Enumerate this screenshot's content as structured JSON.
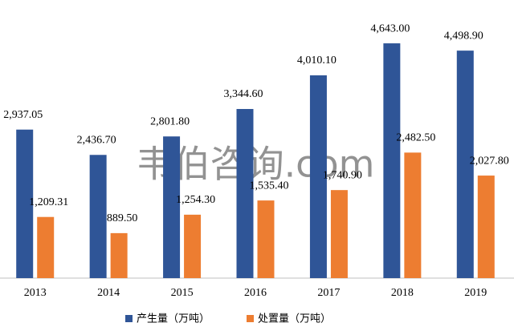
{
  "chart_data": {
    "type": "bar",
    "watermark": "韦伯咨询.com",
    "categories": [
      "2013",
      "2014",
      "2015",
      "2016",
      "2017",
      "2018",
      "2019"
    ],
    "series": [
      {
        "name": "产生量（万吨）",
        "color": "#2f5597",
        "values": [
          2937.05,
          2436.7,
          2801.8,
          3344.6,
          4010.1,
          4643,
          4498.9
        ],
        "value_labels": [
          "2,937.05",
          "2,436.70",
          "2,801.80",
          "3,344.60",
          "4,010.10",
          "4,643.00",
          "4,498.90"
        ]
      },
      {
        "name": "处置量（万吨）",
        "color": "#ed7d31",
        "values": [
          1209.31,
          889.5,
          1254.3,
          1535.4,
          1740.9,
          2482.5,
          2027.8
        ],
        "value_labels": [
          "1,209.31",
          "889.50",
          "1,254.30",
          "1,535.40",
          "1,740.90",
          "2,482.50",
          "2,027.80"
        ]
      }
    ],
    "ylim": [
      0,
      5500
    ]
  }
}
